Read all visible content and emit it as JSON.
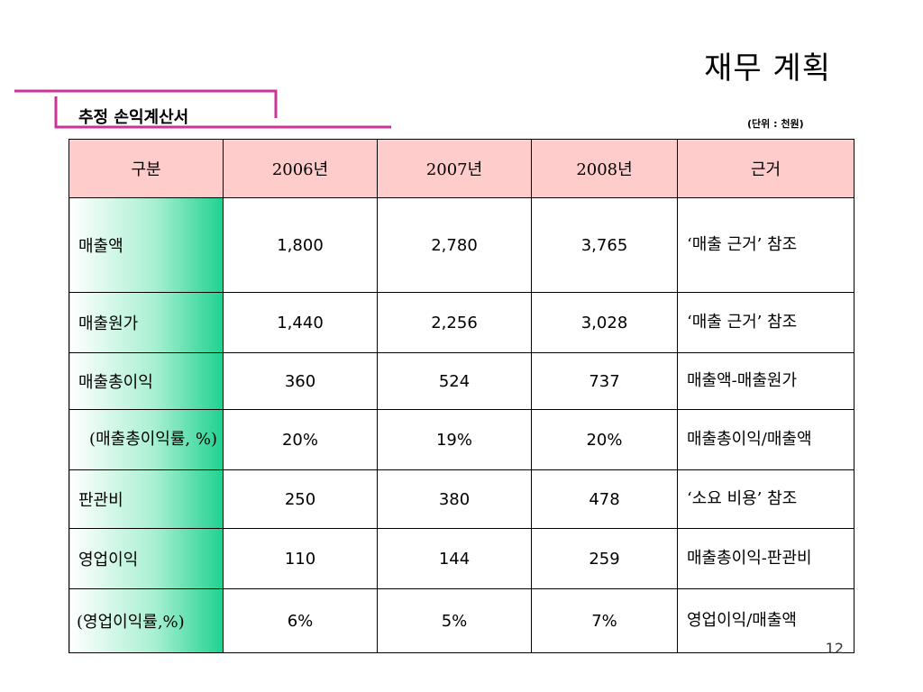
{
  "title": "재무 계획",
  "subtitle": "추정 손익계산서",
  "unit": "(단위 : 천원)",
  "page_number": "12",
  "table": {
    "headers": [
      "구분",
      "2006년",
      "2007년",
      "2008년",
      "근거"
    ],
    "rows": [
      {
        "label": "매출액",
        "v2006": "1,800",
        "v2007": "2,780",
        "v2008": "3,765",
        "basis": "‘매출 근거’ 참조"
      },
      {
        "label": "매출원가",
        "v2006": "1,440",
        "v2007": "2,256",
        "v2008": "3,028",
        "basis": "‘매출 근거’ 참조"
      },
      {
        "label": "매출총이익",
        "v2006": "360",
        "v2007": "524",
        "v2008": "737",
        "basis": "매출액-매출원가"
      },
      {
        "label": "(매출총이익률, %)",
        "v2006": "20%",
        "v2007": "19%",
        "v2008": "20%",
        "basis": "매출총이익/매출액"
      },
      {
        "label": "판관비",
        "v2006": "250",
        "v2007": "380",
        "v2008": "478",
        "basis": "‘소요 비용’ 참조"
      },
      {
        "label": "영업이익",
        "v2006": "110",
        "v2007": "144",
        "v2008": "259",
        "basis": "매출총이익-판관비"
      },
      {
        "label": "(영업이익률,%)",
        "v2006": "6%",
        "v2007": "5%",
        "v2008": "7%",
        "basis": "영업이익/매출액"
      }
    ]
  },
  "colors": {
    "header_bg": "#ffcccc",
    "label_gradient_end": "#1fd28f",
    "accent_line": "#cc3399"
  }
}
